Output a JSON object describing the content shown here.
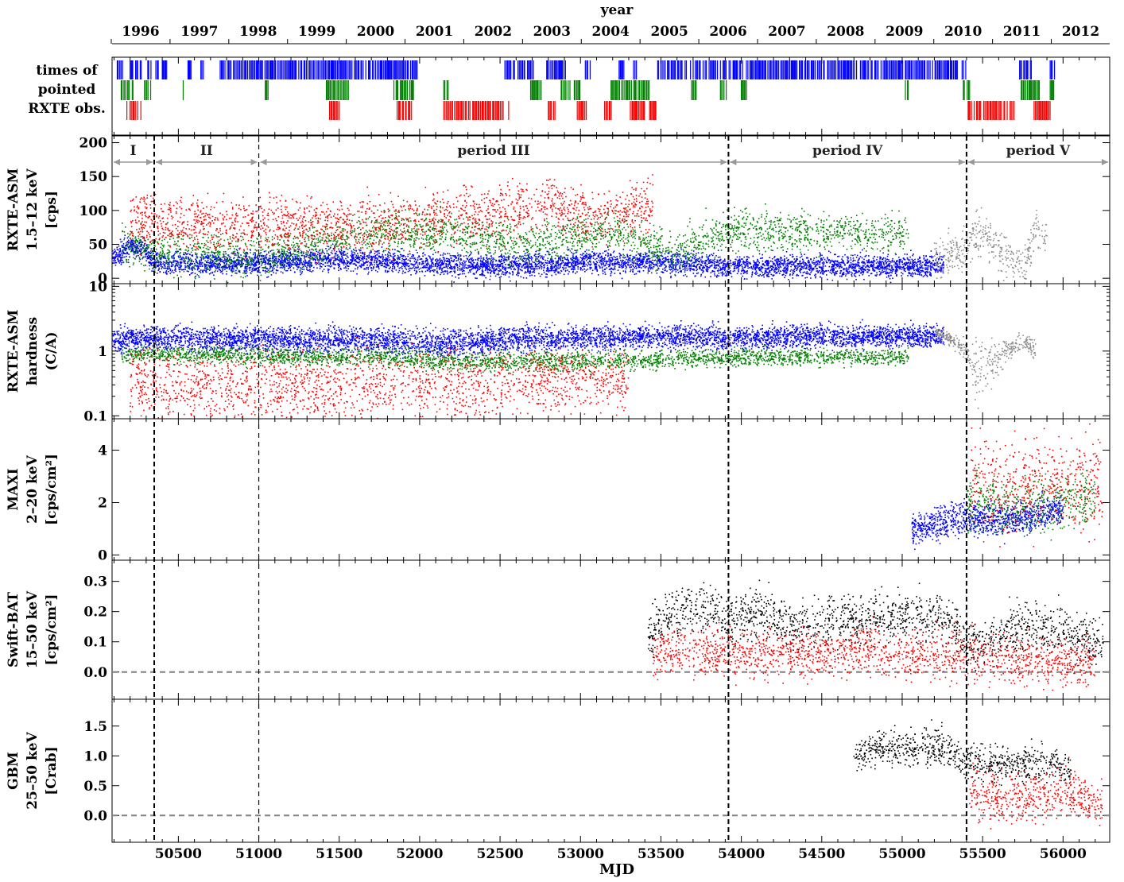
{
  "chart_data": {
    "type": "scatter",
    "x_axis": {
      "label": "MJD",
      "range": [
        50088,
        56290
      ],
      "ticks": [
        50500,
        51000,
        51500,
        52000,
        52500,
        53000,
        53500,
        54000,
        54500,
        55000,
        55500,
        56000
      ]
    },
    "top_axis": {
      "label": "year",
      "ticks": [
        "1996",
        "1997",
        "1998",
        "1999",
        "2000",
        "2001",
        "2002",
        "2003",
        "2004",
        "2005",
        "2006",
        "2007",
        "2008",
        "2009",
        "2010",
        "2011",
        "2012"
      ]
    },
    "colors": {
      "blue": "#0000ff",
      "green": "#008000",
      "red": "#ff0000",
      "grey": "#8c8c8c",
      "black": "#000000",
      "divider": "#000000",
      "arrow": "#999999"
    },
    "dividers_mjd": [
      50350,
      51000,
      53920,
      55400
    ],
    "periods": [
      {
        "label": "I",
        "from": 50088,
        "to": 50350
      },
      {
        "label": "II",
        "from": 50350,
        "to": 51000
      },
      {
        "label": "period III",
        "from": 51000,
        "to": 53920
      },
      {
        "label": "period IV",
        "from": 53920,
        "to": 55400
      },
      {
        "label": "period V",
        "from": 55400,
        "to": 56290
      }
    ],
    "panels": [
      {
        "id": "obs",
        "ylabel_lines": [
          "times of",
          "pointed",
          "RXTE obs."
        ],
        "rows": [
          {
            "color": "blue",
            "segments": [
              [
                50120,
                50160
              ],
              [
                50200,
                50270
              ],
              [
                50310,
                50330
              ],
              [
                50360,
                50380
              ],
              [
                50400,
                50430
              ],
              [
                50560,
                50580
              ],
              [
                50640,
                50660
              ],
              [
                50760,
                51990
              ],
              [
                52530,
                52710
              ],
              [
                52790,
                52910
              ],
              [
                53030,
                53060
              ],
              [
                53240,
                53270
              ],
              [
                53330,
                53350
              ],
              [
                53480,
                53860
              ],
              [
                53870,
                55400
              ],
              [
                55730,
                55810
              ],
              [
                55920,
                55950
              ]
            ]
          },
          {
            "color": "green",
            "segments": [
              [
                50130,
                50220
              ],
              [
                50290,
                50330
              ],
              [
                50530,
                50540
              ],
              [
                51040,
                51060
              ],
              [
                51420,
                51560
              ],
              [
                51840,
                51970
              ],
              [
                52150,
                52180
              ],
              [
                52690,
                52760
              ],
              [
                52880,
                53000
              ],
              [
                53190,
                53430
              ],
              [
                53690,
                53730
              ],
              [
                53870,
                53910
              ],
              [
                54000,
                54040
              ],
              [
                55020,
                55040
              ],
              [
                55380,
                55420
              ],
              [
                55740,
                55860
              ],
              [
                55920,
                55950
              ]
            ]
          },
          {
            "color": "red",
            "segments": [
              [
                50180,
                50270
              ],
              [
                51440,
                51500
              ],
              [
                51860,
                51950
              ],
              [
                52150,
                52560
              ],
              [
                52800,
                52850
              ],
              [
                52980,
                53040
              ],
              [
                53150,
                53200
              ],
              [
                53310,
                53400
              ],
              [
                53430,
                53480
              ],
              [
                55410,
                55710
              ],
              [
                55820,
                55920
              ]
            ]
          }
        ]
      },
      {
        "id": "asm",
        "ylabel_lines": [
          "RXTE-ASM",
          "1.5–12 keV",
          "[cps]"
        ],
        "ylim": [
          -8,
          210
        ],
        "yscale": "linear",
        "yticks": [
          0,
          50,
          100,
          150,
          200
        ],
        "series": [
          {
            "name": "",
            "color": "blue",
            "typical": [
              [
                50088,
                30
              ],
              [
                50180,
                45
              ],
              [
                50280,
                45
              ],
              [
                50350,
                22
              ],
              [
                50700,
                22
              ],
              [
                51000,
                22
              ],
              [
                51400,
                28
              ],
              [
                51800,
                25
              ],
              [
                52150,
                20
              ],
              [
                52550,
                18
              ],
              [
                52800,
                20
              ],
              [
                53000,
                24
              ],
              [
                53500,
                24
              ],
              [
                53920,
                18
              ],
              [
                54500,
                18
              ],
              [
                55100,
                18
              ],
              [
                55260,
                20
              ]
            ],
            "spread": 8
          },
          {
            "name": "",
            "color": "green",
            "typical": [
              [
                50150,
                55
              ],
              [
                50320,
                40
              ],
              [
                51000,
                30
              ],
              [
                51500,
                60
              ],
              [
                51900,
                70
              ],
              [
                52150,
                70
              ],
              [
                52650,
                50
              ],
              [
                52900,
                60
              ],
              [
                53200,
                70
              ],
              [
                53600,
                35
              ],
              [
                53880,
                70
              ],
              [
                55040,
                65
              ]
            ],
            "spread": 15
          },
          {
            "name": "",
            "color": "red",
            "typical": [
              [
                50200,
                90
              ],
              [
                50280,
                80
              ],
              [
                51880,
                80
              ],
              [
                52200,
                95
              ],
              [
                52450,
                95
              ],
              [
                52800,
                110
              ],
              [
                53050,
                90
              ],
              [
                53320,
                100
              ],
              [
                53450,
                110
              ]
            ],
            "spread": 20
          },
          {
            "name": "",
            "color": "grey",
            "typical": [
              [
                55200,
                25
              ],
              [
                55400,
                45
              ],
              [
                55450,
                70
              ],
              [
                55550,
                55
              ],
              [
                55760,
                10
              ],
              [
                55830,
                70
              ],
              [
                55900,
                60
              ]
            ],
            "spread": 15
          }
        ]
      },
      {
        "id": "hardness",
        "ylabel_lines": [
          "RXTE-ASM",
          "hardness",
          "(C/A)"
        ],
        "ylim": [
          0.09,
          11
        ],
        "yscale": "log",
        "yticks": [
          0.1,
          1,
          10
        ],
        "ytick_labels": [
          "0.1",
          "1",
          "10"
        ],
        "series": [
          {
            "name": "",
            "color": "blue",
            "typical": [
              [
                50088,
                1.5
              ],
              [
                50350,
                1.6
              ],
              [
                51000,
                1.5
              ],
              [
                51600,
                1.5
              ],
              [
                52000,
                1.4
              ],
              [
                52150,
                1.3
              ],
              [
                52550,
                1.5
              ],
              [
                53000,
                1.6
              ],
              [
                53500,
                1.7
              ],
              [
                53920,
                1.6
              ],
              [
                54500,
                1.7
              ],
              [
                55260,
                1.7
              ]
            ],
            "spread": 0.8
          },
          {
            "name": "",
            "color": "green",
            "typical": [
              [
                50150,
                0.9
              ],
              [
                51500,
                0.8
              ],
              [
                51900,
                0.8
              ],
              [
                52150,
                0.7
              ],
              [
                52900,
                0.7
              ],
              [
                53250,
                0.7
              ],
              [
                53880,
                0.8
              ],
              [
                55040,
                0.8
              ]
            ],
            "spread": 0.3
          },
          {
            "name": "",
            "color": "red",
            "typical": [
              [
                50200,
                0.3
              ],
              [
                52150,
                0.3
              ],
              [
                52400,
                0.28
              ],
              [
                52600,
                0.3
              ],
              [
                52800,
                0.35
              ],
              [
                53300,
                0.35
              ]
            ],
            "spread": 0.3
          },
          {
            "name": "",
            "color": "grey",
            "typical": [
              [
                55200,
                2.0
              ],
              [
                55400,
                1.0
              ],
              [
                55450,
                0.5
              ],
              [
                55560,
                0.6
              ],
              [
                55760,
                1.5
              ],
              [
                55830,
                1.0
              ]
            ],
            "spread": 0.5
          }
        ]
      },
      {
        "id": "maxi",
        "ylabel_lines": [
          "MAXI",
          "2–20 keV",
          "[cps/cm²]"
        ],
        "ylim": [
          -0.2,
          5.2
        ],
        "yscale": "linear",
        "yticks": [
          0,
          2,
          4
        ],
        "series": [
          {
            "name": "",
            "color": "blue",
            "typical": [
              [
                55060,
                1.0
              ],
              [
                55200,
                1.2
              ],
              [
                55380,
                1.4
              ],
              [
                55600,
                1.3
              ],
              [
                55800,
                1.5
              ],
              [
                56000,
                1.8
              ]
            ],
            "spread": 0.3
          },
          {
            "name": "",
            "color": "green",
            "typical": [
              [
                55400,
                2.0
              ],
              [
                55700,
                1.8
              ],
              [
                56000,
                2.0
              ],
              [
                56200,
                2.2
              ]
            ],
            "spread": 0.5
          },
          {
            "name": "",
            "color": "red",
            "typical": [
              [
                55420,
                3.0
              ],
              [
                55600,
                2.6
              ],
              [
                55800,
                2.8
              ],
              [
                56000,
                3.0
              ],
              [
                56250,
                2.6
              ]
            ],
            "spread": 0.9
          }
        ]
      },
      {
        "id": "bat",
        "ylabel_lines": [
          "Swift-BAT",
          "15–50 keV",
          "[cps/cm²]"
        ],
        "ylim": [
          -0.09,
          0.37
        ],
        "yscale": "linear",
        "yticks": [
          0.0,
          0.1,
          0.2,
          0.3
        ],
        "ytick_labels": [
          "0.0",
          "0.1",
          "0.2",
          "0.3"
        ],
        "zero_line": 0,
        "series": [
          {
            "name": "",
            "color": "black",
            "typical": [
              [
                53420,
                0.12
              ],
              [
                53600,
                0.2
              ],
              [
                53800,
                0.22
              ],
              [
                53920,
                0.17
              ],
              [
                54100,
                0.2
              ],
              [
                54300,
                0.15
              ],
              [
                54600,
                0.17
              ],
              [
                55000,
                0.18
              ],
              [
                55250,
                0.19
              ],
              [
                55380,
                0.12
              ],
              [
                55450,
                0.09
              ],
              [
                55700,
                0.14
              ],
              [
                55900,
                0.15
              ],
              [
                56100,
                0.11
              ],
              [
                56250,
                0.1
              ]
            ],
            "spread": 0.04
          },
          {
            "name": "",
            "color": "red",
            "typical": [
              [
                53450,
                0.07
              ],
              [
                54000,
                0.06
              ],
              [
                54800,
                0.07
              ],
              [
                55420,
                0.05
              ],
              [
                55600,
                0.04
              ],
              [
                55900,
                0.04
              ],
              [
                56200,
                0.03
              ]
            ],
            "spread": 0.04
          }
        ]
      },
      {
        "id": "gbm",
        "ylabel_lines": [
          "GBM",
          "25–50 keV",
          "[Crab]"
        ],
        "ylim": [
          -0.45,
          1.95
        ],
        "yscale": "linear",
        "yticks": [
          0.0,
          0.5,
          1.0,
          1.5
        ],
        "ytick_labels": [
          "0.0",
          "0.5",
          "1.0",
          "1.5"
        ],
        "zero_line": 0,
        "series": [
          {
            "name": "",
            "color": "black",
            "typical": [
              [
                54700,
                1.0
              ],
              [
                54900,
                1.15
              ],
              [
                55100,
                1.1
              ],
              [
                55250,
                1.2
              ],
              [
                55380,
                0.9
              ],
              [
                55700,
                0.85
              ],
              [
                55900,
                0.9
              ],
              [
                56050,
                0.75
              ]
            ],
            "spread": 0.15
          },
          {
            "name": "",
            "color": "red",
            "typical": [
              [
                55420,
                0.4
              ],
              [
                55600,
                0.3
              ],
              [
                55750,
                0.3
              ],
              [
                56000,
                0.4
              ],
              [
                56250,
                0.15
              ]
            ],
            "spread": 0.2
          }
        ]
      }
    ]
  }
}
